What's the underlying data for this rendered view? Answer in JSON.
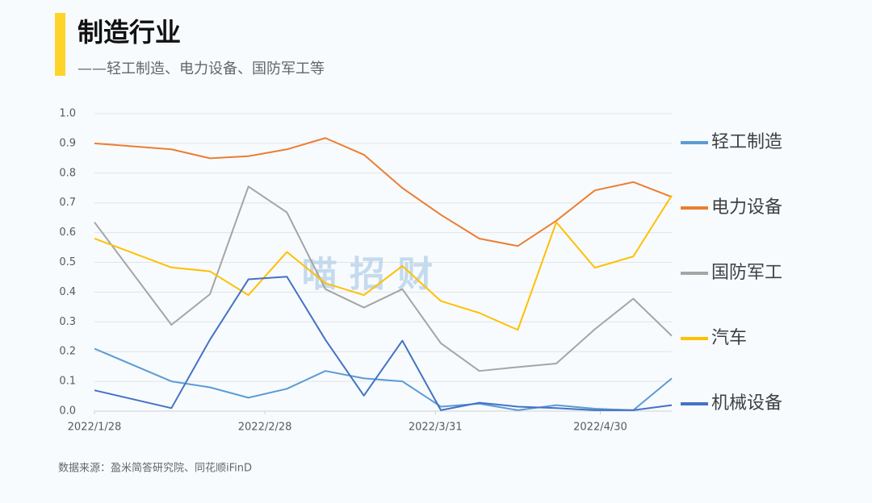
{
  "chart_data": {
    "type": "line",
    "title": "制造行业",
    "subtitle": "——轻工制造、电力设备、国防军工等",
    "source": "数据来源：盈米简答研究院、同花顺iFinD",
    "watermark": "喵 招 财",
    "x": [
      "2022-01-28",
      "2022-02-11",
      "2022-02-18",
      "2022-02-25",
      "2022-03-04",
      "2022-03-11",
      "2022-03-18",
      "2022-03-25",
      "2022-04-01",
      "2022-04-08",
      "2022-04-15",
      "2022-04-22",
      "2022-04-29",
      "2022-05-06",
      "2022-05-13"
    ],
    "xlim": [
      "2022-01-28",
      "2022-05-13"
    ],
    "xticks": [
      {
        "value": "2022-01-28",
        "label": "2022/1/28"
      },
      {
        "value": "2022-02-28",
        "label": "2022/2/28"
      },
      {
        "value": "2022-03-31",
        "label": "2022/3/31"
      },
      {
        "value": "2022-04-30",
        "label": "2022/4/30"
      }
    ],
    "ylim": [
      0,
      1
    ],
    "yticks": [
      {
        "value": 0,
        "label": "0.0"
      },
      0.1,
      0.2,
      0.3,
      0.4,
      0.5,
      0.6,
      0.7,
      0.8,
      0.9,
      {
        "value": 1,
        "label": "1.0"
      }
    ],
    "grid": true,
    "legend": "right",
    "series": [
      {
        "name": "轻工制造",
        "color": "#5b9bd5",
        "values": [
          0.21,
          0.1,
          0.08,
          0.045,
          0.075,
          0.135,
          0.11,
          0.1,
          0.015,
          0.025,
          0.003,
          0.02,
          0.008,
          0.003,
          0.11
        ]
      },
      {
        "name": "电力设备",
        "color": "#ed7d31",
        "values": [
          0.9,
          0.88,
          0.85,
          0.857,
          0.88,
          0.918,
          0.862,
          0.75,
          0.66,
          0.58,
          0.555,
          0.64,
          0.742,
          0.77,
          0.72
        ]
      },
      {
        "name": "国防军工",
        "color": "#a5a5a5",
        "values": [
          0.635,
          0.29,
          0.393,
          0.755,
          0.668,
          0.41,
          0.348,
          0.41,
          0.228,
          0.135,
          0.148,
          0.16,
          0.275,
          0.378,
          0.253
        ]
      },
      {
        "name": "汽车",
        "color": "#ffc000",
        "values": [
          0.58,
          0.483,
          0.47,
          0.39,
          0.535,
          0.43,
          0.39,
          0.488,
          0.37,
          0.33,
          0.273,
          0.635,
          0.482,
          0.52,
          0.725
        ]
      },
      {
        "name": "机械设备",
        "color": "#4472c4",
        "values": [
          0.07,
          0.01,
          0.24,
          0.443,
          0.452,
          0.24,
          0.052,
          0.237,
          0.003,
          0.028,
          0.015,
          0.01,
          0.003,
          0.003,
          0.02
        ]
      }
    ]
  }
}
